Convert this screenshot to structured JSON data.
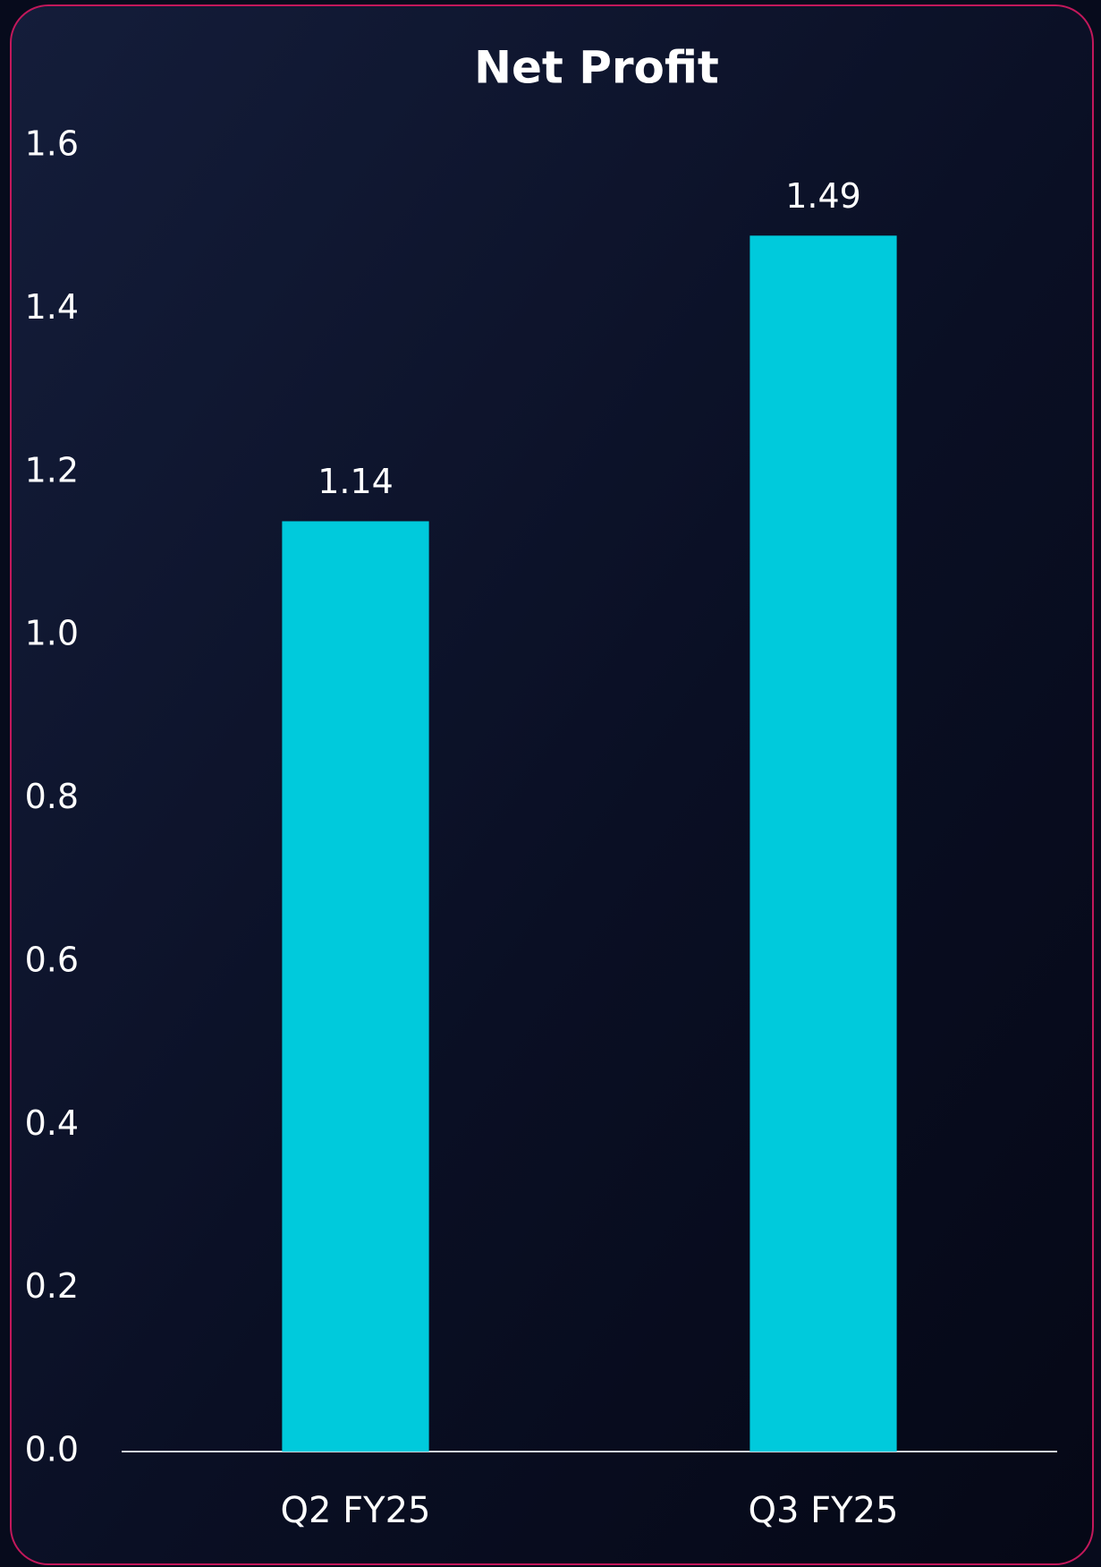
{
  "chart_data": {
    "type": "bar",
    "title": "Net Profit",
    "categories": [
      "Q2 FY25",
      "Q3 FY25"
    ],
    "values": [
      1.14,
      1.49
    ],
    "color": "#00cadc",
    "ylim": [
      0,
      1.6
    ],
    "yticks": [
      {
        "value": 0,
        "label": "0.0"
      },
      0.2,
      0.4,
      0.6,
      0.8,
      {
        "value": 1,
        "label": "1.0"
      },
      1.2,
      1.4,
      1.6
    ],
    "grid": false
  }
}
